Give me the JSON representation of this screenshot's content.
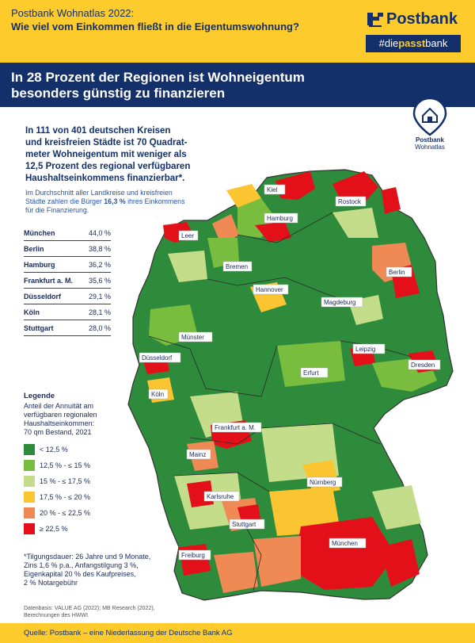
{
  "header": {
    "kicker": "Postbank Wohnatlas 2022:",
    "question": "Wie viel vom Einkommen fließt in die Eigentumswohnung?",
    "brand": "Postbank",
    "tag_prefix": "#die",
    "tag_bold": "passt",
    "tag_suffix": "bank"
  },
  "headline": {
    "line1": "In 28 Prozent der Regionen ist Wohneigentum",
    "line2": "besonders günstig zu finanzieren"
  },
  "pin": {
    "line1": "Postbank",
    "line2": "Wohnatlas"
  },
  "intro": {
    "lines": [
      "In 111 von 401 deutschen Kreisen",
      "und kreisfreien Städte ist 70 Quadrat-",
      "meter Wohneigentum mit weniger als",
      "12,5 Prozent des regional verfügbaren",
      "Haushaltseinkommens finanzierbar*."
    ]
  },
  "average": {
    "line1": "Im Durchschnitt aller Landkreise und kreisfreien",
    "line2_pre": "Städte zahlen die Bürger ",
    "line2_value": "16,3 %",
    "line2_post": " ihres Einkommens",
    "line3": "für die Finanzierung."
  },
  "ranking": [
    {
      "city": "München",
      "value": "44,0 %"
    },
    {
      "city": "Berlin",
      "value": "38,8 %"
    },
    {
      "city": "Hamburg",
      "value": "36,2 %"
    },
    {
      "city": "Frankfurt a. M.",
      "value": "35,6 %"
    },
    {
      "city": "Düsseldorf",
      "value": "29,1 %"
    },
    {
      "city": "Köln",
      "value": "28,1 %"
    },
    {
      "city": "Stuttgart",
      "value": "28,0 %"
    }
  ],
  "legend": {
    "title": "Legende",
    "subtitle_lines": [
      "Anteil der Annuität am",
      "verfügbaren regionalen",
      "Haushaltseinkommen:",
      "70 qm Bestand, 2021"
    ],
    "items": [
      {
        "label": "< 12,5 %",
        "color": "#2e8b3c"
      },
      {
        "label": "12,5 % - ≤ 15 %",
        "color": "#79bd3f"
      },
      {
        "label": "15 % - ≤ 17,5 %",
        "color": "#c4dd8a"
      },
      {
        "label": "17,5 % - ≤ 20 %",
        "color": "#fbc532"
      },
      {
        "label": "20 % - ≤ 22,5 %",
        "color": "#f08a55"
      },
      {
        "label": "≥ 22,5 %",
        "color": "#e3101a"
      }
    ]
  },
  "footnote": {
    "lines": [
      "*Tilgungsdauer: 26 Jahre und 9 Monate,",
      "Zins 1,6 % p.a., Anfangstilgung 3 %,",
      "Eigenkapital 20 % des Kaufpreises,",
      "2 % Notargebühr"
    ]
  },
  "data_basis": {
    "line1": "Datenbasis: VALUE AG (2022); MB Research (2022),",
    "line2": "Berechnungen des HWWI."
  },
  "source": "Quelle: Postbank – eine Niederlassung der Deutsche Bank AG",
  "map_cities": [
    "Kiel",
    "Rostock",
    "Hamburg",
    "Leer",
    "Bremen",
    "Berlin",
    "Hannover",
    "Magdeburg",
    "Münster",
    "Düsseldorf",
    "Leipzig",
    "Erfurt",
    "Dresden",
    "Köln",
    "Frankfurt a. M.",
    "Mainz",
    "Nürnberg",
    "Karlsruhe",
    "Stuttgart",
    "München",
    "Freiburg"
  ],
  "colors": {
    "navy": "#13306b",
    "yellow": "#fdcb2c"
  }
}
